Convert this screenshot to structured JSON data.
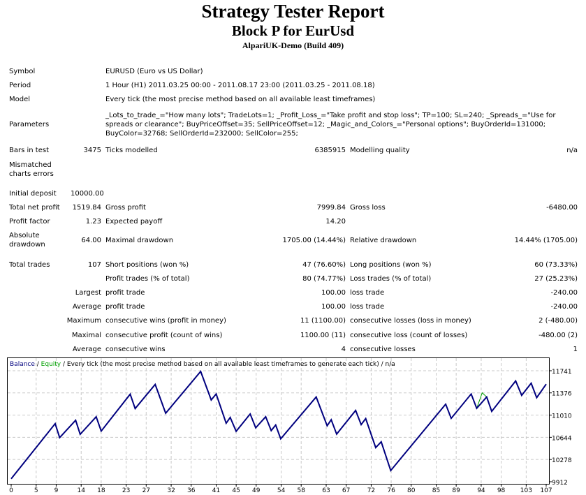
{
  "header": {
    "title": "Strategy Tester Report",
    "subtitle": "Block P for EurUsd",
    "server": "AlpariUK-Demo (Build 409)"
  },
  "info": {
    "symbol_label": "Symbol",
    "symbol": "EURUSD (Euro vs US Dollar)",
    "period_label": "Period",
    "period": "1 Hour (H1) 2011.03.25 00:00 - 2011.08.17 23:00 (2011.03.25 - 2011.08.18)",
    "model_label": "Model",
    "model": "Every tick (the most precise method based on all available least timeframes)",
    "parameters_label": "Parameters",
    "parameters": "_Lots_to_trade_=\"How many lots\"; TradeLots=1; _Profit_Loss_=\"Take profit and stop loss\"; TP=100; SL=240; _Spreads_=\"Use for spreads or clearance\"; BuyPriceOffset=35; SellPriceOffset=12; _Magic_and_Colors_=\"Personal options\"; BuyOrderId=131000; BuyColor=32768; SellOrderId=232000; SellColor=255;",
    "bars_label": "Bars in test",
    "bars": "3475",
    "ticks_label": "Ticks modelled",
    "ticks": "6385915",
    "quality_label": "Modelling quality",
    "quality": "n/a",
    "mismatch_label": "Mismatched charts errors"
  },
  "stats": {
    "initial_deposit_label": "Initial deposit",
    "initial_deposit": "10000.00",
    "net_profit_label": "Total net profit",
    "net_profit": "1519.84",
    "gross_profit_label": "Gross profit",
    "gross_profit": "7999.84",
    "gross_loss_label": "Gross loss",
    "gross_loss": "-6480.00",
    "profit_factor_label": "Profit factor",
    "profit_factor": "1.23",
    "expected_payoff_label": "Expected payoff",
    "expected_payoff": "14.20",
    "abs_dd_label": "Absolute drawdown",
    "abs_dd": "64.00",
    "max_dd_label": "Maximal drawdown",
    "max_dd": "1705.00 (14.44%)",
    "rel_dd_label": "Relative drawdown",
    "rel_dd": "14.44% (1705.00)",
    "total_trades_label": "Total trades",
    "total_trades": "107",
    "short_label": "Short positions (won %)",
    "short": "47 (76.60%)",
    "long_label": "Long positions (won %)",
    "long": "60 (73.33%)",
    "profit_trades_label": "Profit trades (% of total)",
    "profit_trades": "80 (74.77%)",
    "loss_trades_label": "Loss trades (% of total)",
    "loss_trades": "27 (25.23%)",
    "largest": "Largest",
    "largest_profit_label": "profit trade",
    "largest_profit": "100.00",
    "largest_loss_label": "loss trade",
    "largest_loss": "-240.00",
    "average": "Average",
    "avg_profit_label": "profit trade",
    "avg_profit": "100.00",
    "avg_loss_label": "loss trade",
    "avg_loss": "-240.00",
    "maximum": "Maximum",
    "max_wins_label": "consecutive wins (profit in money)",
    "max_wins": "11 (1100.00)",
    "max_losses_label": "consecutive losses (loss in money)",
    "max_losses": "2 (-480.00)",
    "maximal": "Maximal",
    "maximal_profit_label": "consecutive profit (count of wins)",
    "maximal_profit": "1100.00 (11)",
    "maximal_loss_label": "consecutive loss (count of losses)",
    "maximal_loss": "-480.00 (2)",
    "average2": "Average",
    "avg_wins_label": "consecutive wins",
    "avg_wins": "4",
    "avg_losses_label": "consecutive losses",
    "avg_losses": "1"
  },
  "chart_data": {
    "type": "line",
    "legend": {
      "balance": "Balance",
      "sep": " / ",
      "equity": "Equity",
      "rest": " / Every tick (the most precise method based on all available least timeframes to generate each tick) / n/a"
    },
    "colors": {
      "balance": "#00007f",
      "equity": "#00a000",
      "grid": "#c8c8c8"
    },
    "ylim": [
      9912,
      11741
    ],
    "yticks": [
      9912,
      10278,
      10644,
      11010,
      11376,
      11741
    ],
    "xticks": [
      0,
      5,
      9,
      14,
      18,
      23,
      27,
      32,
      36,
      41,
      45,
      49,
      54,
      58,
      63,
      67,
      72,
      76,
      80,
      85,
      89,
      94,
      98,
      103,
      107
    ],
    "xlim": [
      0,
      107
    ],
    "series": [
      {
        "name": "Balance",
        "points": [
          [
            0,
            9960
          ],
          [
            8.8,
            10869
          ],
          [
            9.7,
            10639
          ],
          [
            12.9,
            10926
          ],
          [
            13.8,
            10693
          ],
          [
            17,
            10983
          ],
          [
            18,
            10746
          ],
          [
            23.8,
            11354
          ],
          [
            24.8,
            11117
          ],
          [
            28.8,
            11515
          ],
          [
            30.9,
            11041
          ],
          [
            37.9,
            11729
          ],
          [
            40,
            11259
          ],
          [
            41,
            11358
          ],
          [
            43,
            10876
          ],
          [
            43.8,
            10972
          ],
          [
            45,
            10742
          ],
          [
            47.8,
            11029
          ],
          [
            48.9,
            10800
          ],
          [
            50.9,
            10983
          ],
          [
            52,
            10754
          ],
          [
            52.9,
            10846
          ],
          [
            53.9,
            10620
          ],
          [
            61,
            11308
          ],
          [
            63.2,
            10834
          ],
          [
            64,
            10933
          ],
          [
            65.1,
            10696
          ],
          [
            68.9,
            11087
          ],
          [
            70,
            10853
          ],
          [
            70.9,
            10953
          ],
          [
            72.9,
            10474
          ],
          [
            74,
            10570
          ],
          [
            75.9,
            10096
          ],
          [
            86.9,
            11190
          ],
          [
            88,
            10956
          ],
          [
            92,
            11358
          ],
          [
            93.1,
            11121
          ],
          [
            95.1,
            11308
          ],
          [
            96.1,
            11071
          ],
          [
            100.9,
            11573
          ],
          [
            102.1,
            11335
          ],
          [
            104,
            11535
          ],
          [
            105.1,
            11297
          ],
          [
            107,
            11520
          ]
        ]
      },
      {
        "name": "Equity",
        "points": [
          [
            93.1,
            11121
          ],
          [
            94.2,
            11377
          ],
          [
            95.1,
            11308
          ]
        ]
      }
    ]
  }
}
